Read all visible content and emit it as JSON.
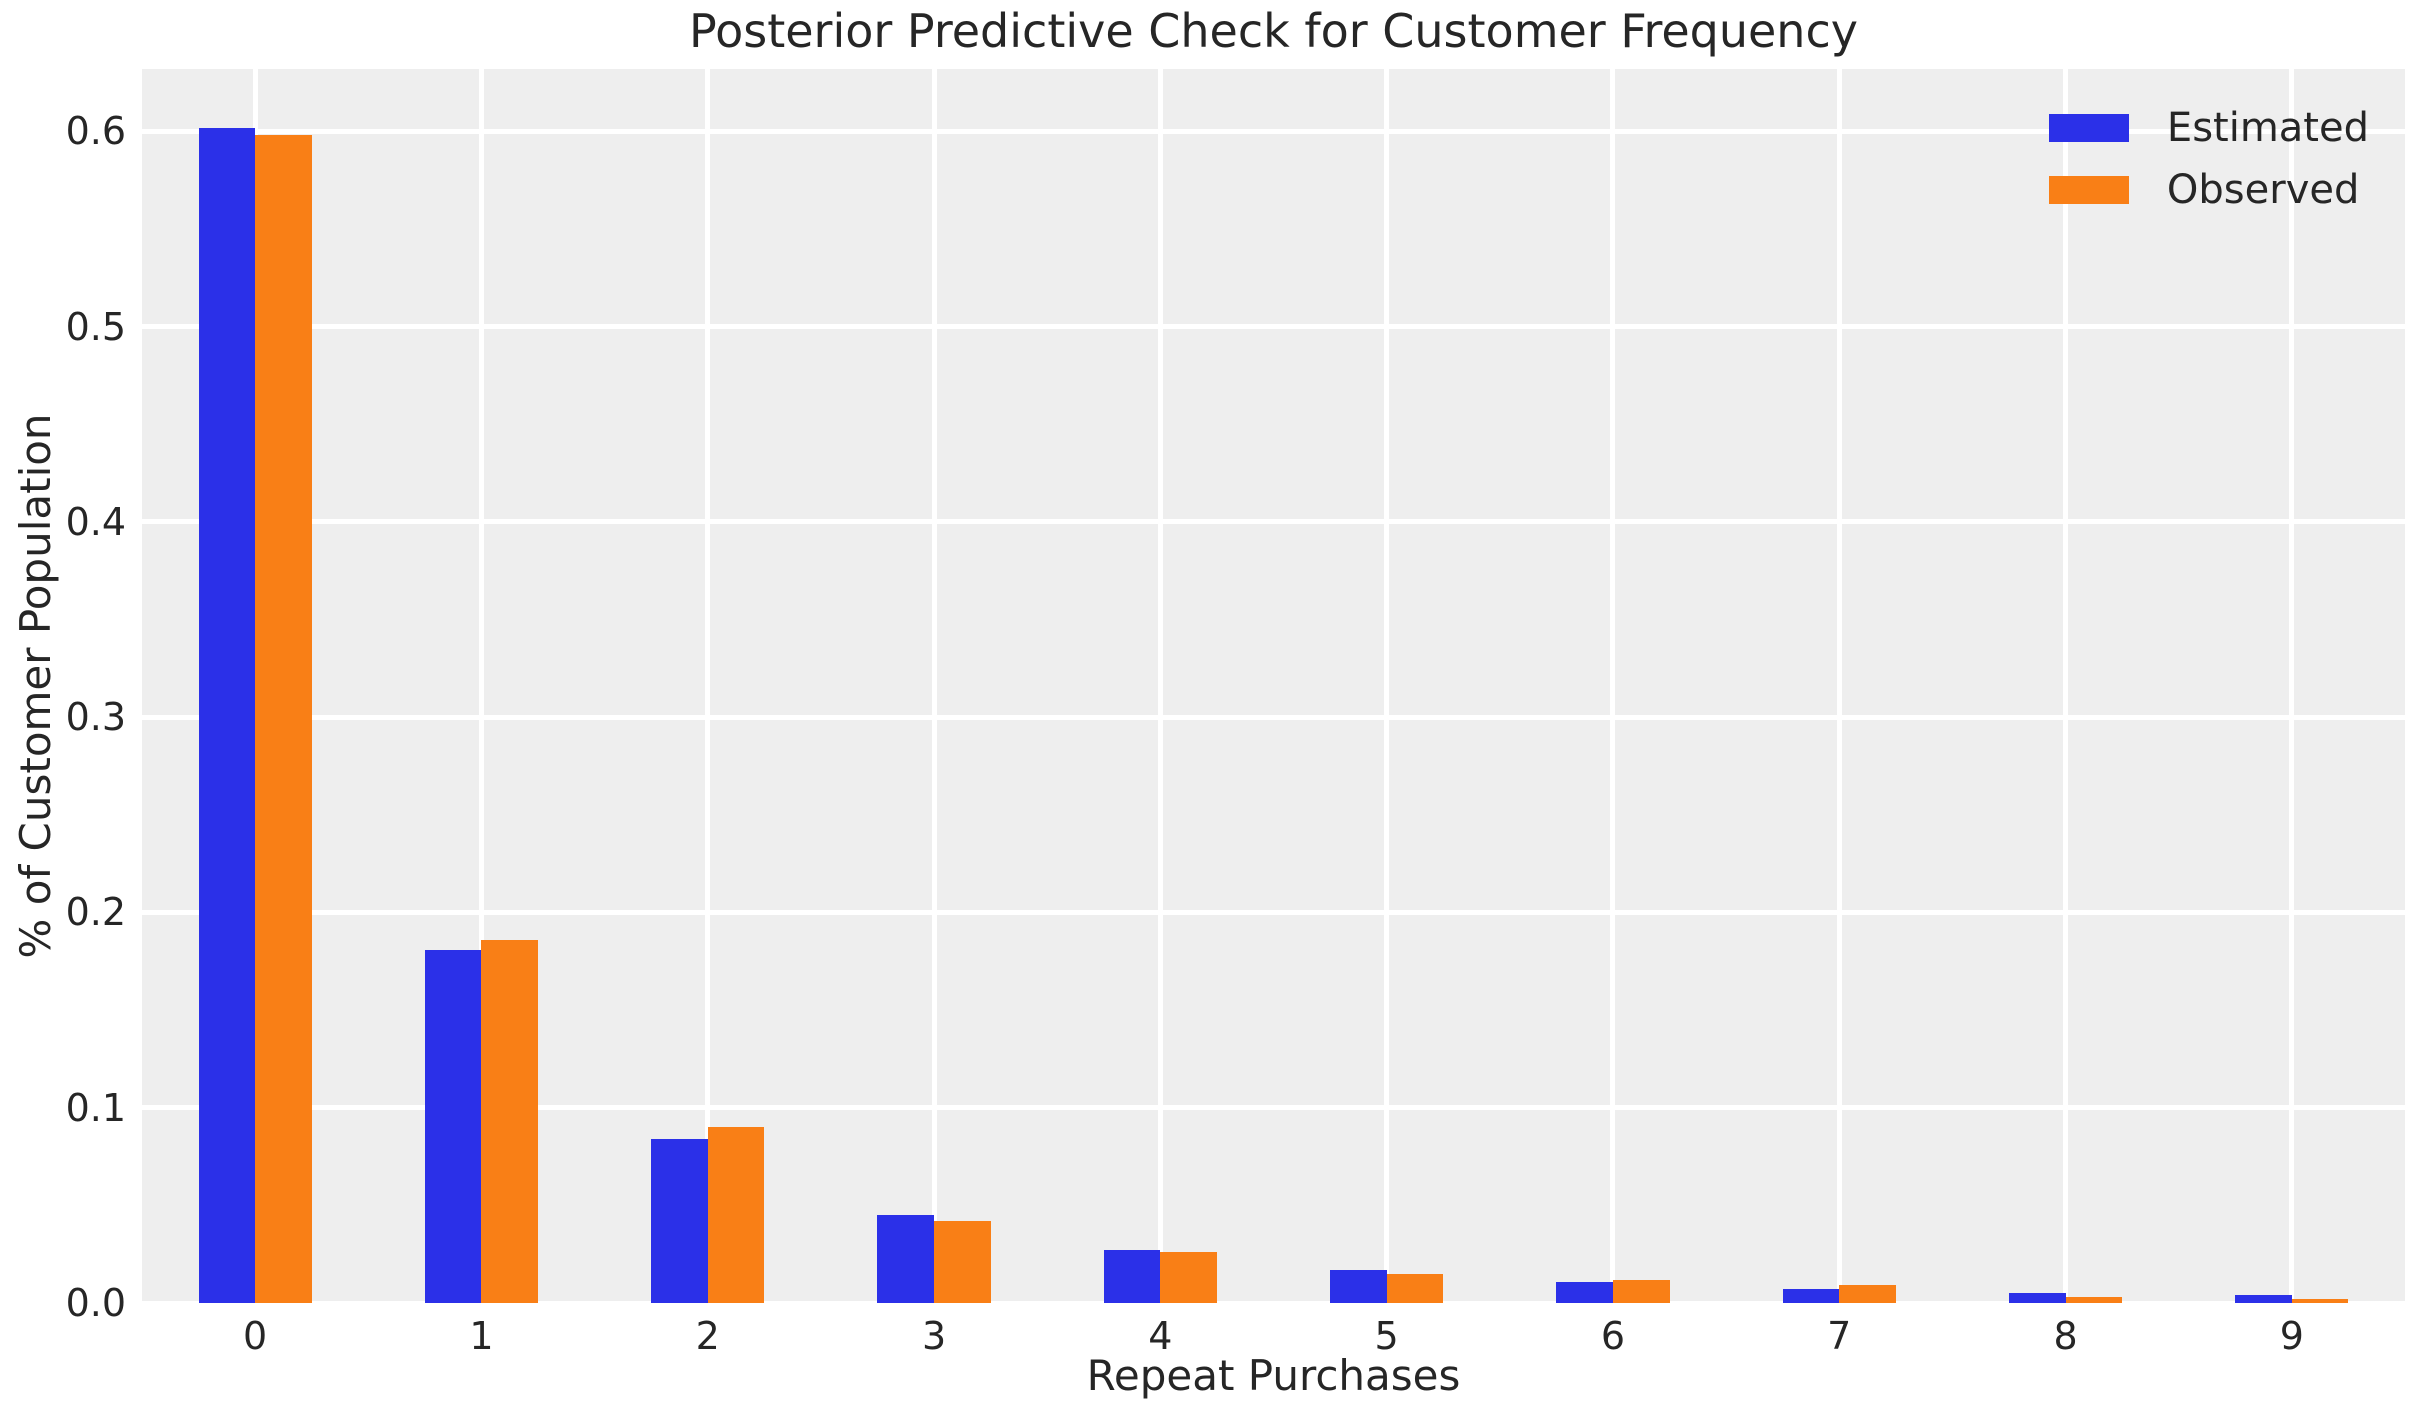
{
  "chart_data": {
    "type": "bar",
    "title": "Posterior Predictive Check for Customer Frequency",
    "xlabel": "Repeat Purchases",
    "ylabel": "% of Customer Population",
    "categories": [
      "0",
      "1",
      "2",
      "3",
      "4",
      "5",
      "6",
      "7",
      "8",
      "9"
    ],
    "series": [
      {
        "name": "Estimated",
        "color": "#2b30e8",
        "values": [
          0.602,
          0.181,
          0.084,
          0.045,
          0.027,
          0.017,
          0.011,
          0.007,
          0.005,
          0.004
        ]
      },
      {
        "name": "Observed",
        "color": "#f97f16",
        "values": [
          0.598,
          0.186,
          0.09,
          0.042,
          0.026,
          0.015,
          0.012,
          0.009,
          0.003,
          0.002
        ]
      }
    ],
    "y_ticks": [
      "0.0",
      "0.1",
      "0.2",
      "0.3",
      "0.4",
      "0.5",
      "0.6"
    ],
    "ylim": [
      0,
      0.632
    ],
    "grid": true,
    "legend_position": "upper right",
    "colors": {
      "plot_background": "#eeeeee",
      "figure_background": "#ffffff",
      "gridline": "#ffffff",
      "text": "#262626"
    }
  }
}
